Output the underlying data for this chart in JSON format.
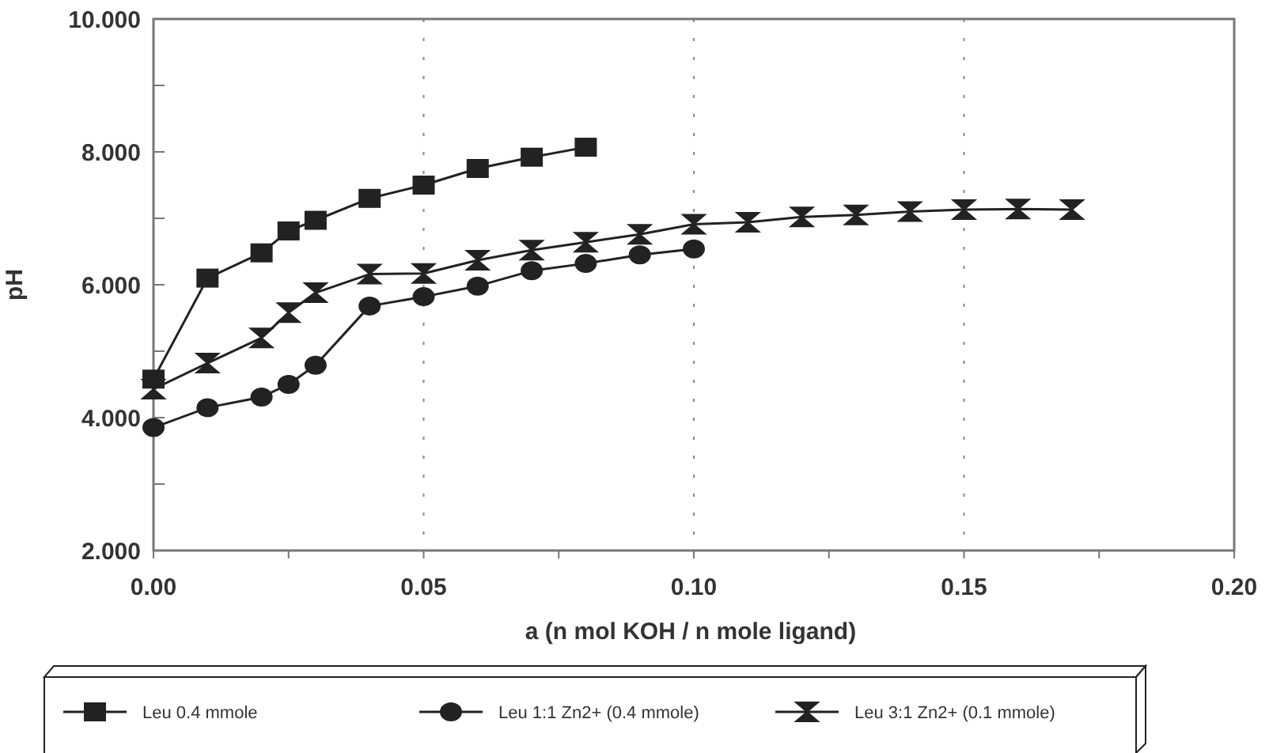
{
  "chart_data": {
    "type": "line",
    "xlabel": "a (n mol KOH / n mole ligand)",
    "ylabel": "pH",
    "xlim": [
      0,
      0.2
    ],
    "xticks": [
      {
        "value": 0,
        "label": "0.00"
      },
      {
        "value": 0.025,
        "label": null
      },
      {
        "value": 0.05,
        "label": "0.05"
      },
      {
        "value": 0.075,
        "label": null
      },
      {
        "value": 0.1,
        "label": "0.10"
      },
      {
        "value": 0.125,
        "label": null
      },
      {
        "value": 0.15,
        "label": "0.15"
      },
      {
        "value": 0.175,
        "label": null
      },
      {
        "value": 0.2,
        "label": "0.20"
      }
    ],
    "ylim": [
      2,
      10
    ],
    "yticks": [
      {
        "value": 2,
        "label": "2.000"
      },
      {
        "value": 3,
        "label": null
      },
      {
        "value": 4,
        "label": "4.000"
      },
      {
        "value": 5,
        "label": null
      },
      {
        "value": 6,
        "label": "6.000"
      },
      {
        "value": 7,
        "label": null
      },
      {
        "value": 8,
        "label": "8.000"
      },
      {
        "value": 9,
        "label": null
      },
      {
        "value": 10,
        "label": "10.000"
      }
    ],
    "grid": "x",
    "legend": "bottom",
    "line_style": "solid",
    "series": [
      {
        "name": "Leu 0.4 mmole",
        "color": "#222222",
        "marker": "square",
        "x": [
          0,
          0.01,
          0.02,
          0.025,
          0.03,
          0.04,
          0.05,
          0.06,
          0.07,
          0.08
        ],
        "values": [
          4.58,
          6.1,
          6.48,
          6.81,
          6.97,
          7.3,
          7.5,
          7.75,
          7.92,
          8.07
        ]
      },
      {
        "name": "Leu 1:1 Zn2+ (0.4 mmole)",
        "color": "#222222",
        "marker": "circle",
        "x": [
          0,
          0.01,
          0.02,
          0.025,
          0.03,
          0.04,
          0.05,
          0.06,
          0.07,
          0.08,
          0.09,
          0.1
        ],
        "values": [
          3.85,
          4.15,
          4.31,
          4.5,
          4.79,
          5.68,
          5.82,
          5.98,
          6.21,
          6.32,
          6.45,
          6.54
        ]
      },
      {
        "name": "Leu 3:1 Zn2+ (0.1 mmole)",
        "color": "#222222",
        "marker": "cross",
        "x": [
          0,
          0.01,
          0.02,
          0.025,
          0.03,
          0.04,
          0.05,
          0.06,
          0.07,
          0.08,
          0.09,
          0.1,
          0.11,
          0.12,
          0.13,
          0.14,
          0.15,
          0.16,
          0.17
        ],
        "values": [
          4.43,
          4.82,
          5.2,
          5.58,
          5.88,
          6.16,
          6.17,
          6.37,
          6.52,
          6.64,
          6.76,
          6.91,
          6.94,
          7.02,
          7.05,
          7.1,
          7.13,
          7.14,
          7.13
        ]
      }
    ]
  }
}
